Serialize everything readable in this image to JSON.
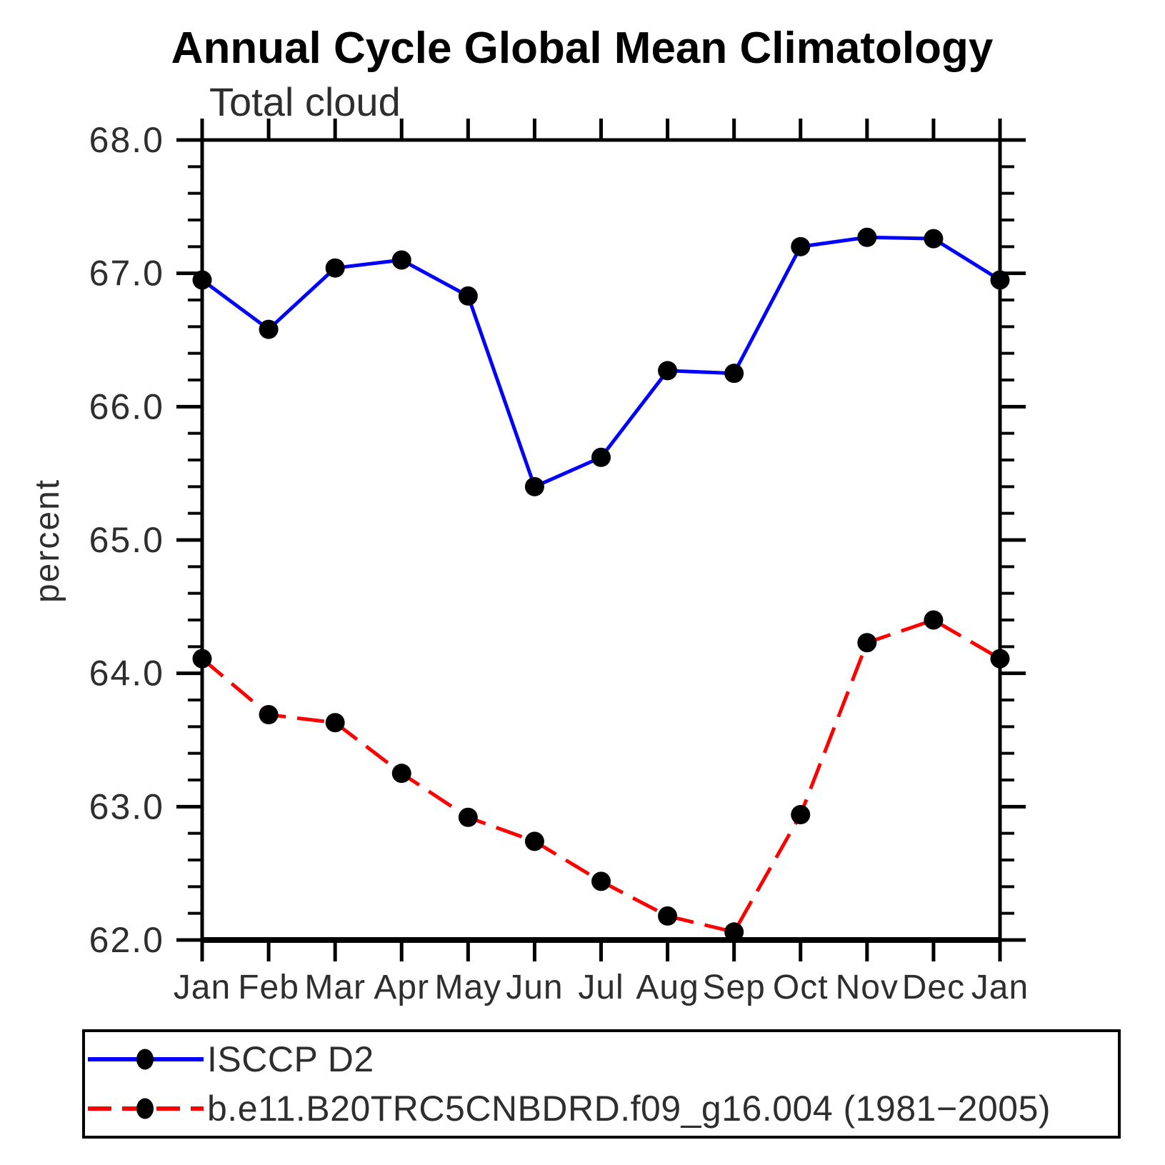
{
  "chart_data": {
    "type": "line",
    "title": "Annual Cycle Global Mean Climatology",
    "subtitle": "Total cloud",
    "xlabel": "",
    "ylabel": "percent",
    "ylim": [
      62.0,
      68.0
    ],
    "ytick_step": 1.0,
    "ytick_minor_step": 0.2,
    "ytick_labels": [
      "68.0",
      "67.0",
      "66.0",
      "65.0",
      "64.0",
      "63.0",
      "62.0"
    ],
    "categories": [
      "Jan",
      "Feb",
      "Mar",
      "Apr",
      "May",
      "Jun",
      "Jul",
      "Aug",
      "Sep",
      "Oct",
      "Nov",
      "Dec",
      "Jan"
    ],
    "grid": "off",
    "legend_position": "bottom-left-box",
    "axis_color": "#000000",
    "background_color": "#ffffff",
    "marker_color": "#000000",
    "series": [
      {
        "name": "ISCCP D2",
        "color": "#0000ff",
        "line_style": "solid",
        "marker": "filled-circle",
        "values": [
          66.95,
          66.58,
          67.04,
          67.1,
          66.83,
          65.4,
          65.62,
          66.27,
          66.25,
          67.2,
          67.27,
          67.26,
          66.95
        ]
      },
      {
        "name": "b.e11.B20TRC5CNBDRD.f09_g16.004 (1981−2005)",
        "color": "#ff0000",
        "line_style": "dashed",
        "marker": "filled-circle",
        "values": [
          64.11,
          63.69,
          63.63,
          63.25,
          62.92,
          62.74,
          62.44,
          62.18,
          62.06,
          62.94,
          64.23,
          64.4,
          64.11
        ]
      }
    ]
  }
}
